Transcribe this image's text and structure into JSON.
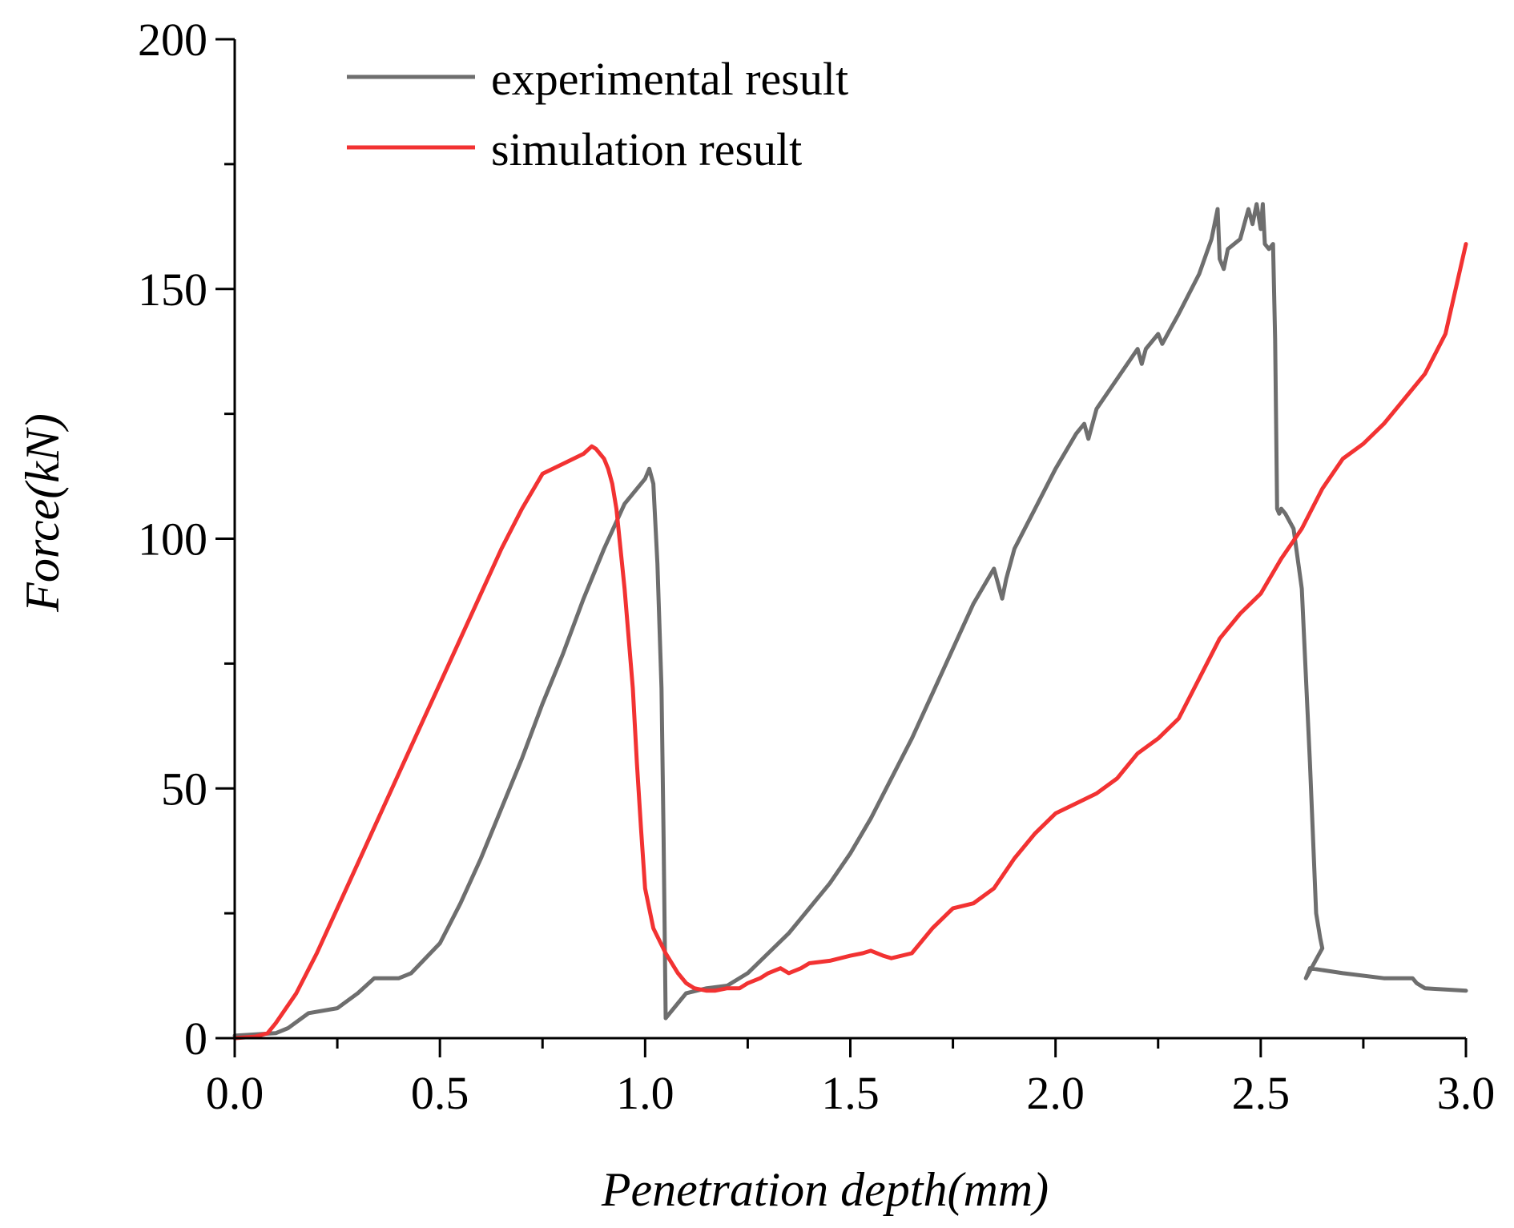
{
  "chart_data": {
    "type": "line",
    "title": "",
    "xlabel": "Penetration depth(mm)",
    "ylabel": "Force(kN)",
    "xlim": [
      0.0,
      3.0
    ],
    "ylim": [
      0,
      200
    ],
    "x_ticks": [
      "0.0",
      "0.5",
      "1.0",
      "1.5",
      "2.0",
      "2.5",
      "3.0"
    ],
    "y_ticks": [
      "0",
      "50",
      "100",
      "150",
      "200"
    ],
    "grid": false,
    "legend_position": "top-center",
    "series": [
      {
        "name": "experimental result",
        "color": "#6e6e6e",
        "x": [
          0.0,
          0.1,
          0.13,
          0.18,
          0.25,
          0.3,
          0.34,
          0.4,
          0.43,
          0.5,
          0.55,
          0.6,
          0.65,
          0.7,
          0.75,
          0.8,
          0.85,
          0.9,
          0.95,
          1.0,
          1.01,
          1.02,
          1.03,
          1.04,
          1.045,
          1.05,
          1.06,
          1.08,
          1.1,
          1.15,
          1.2,
          1.25,
          1.3,
          1.35,
          1.4,
          1.45,
          1.5,
          1.55,
          1.6,
          1.65,
          1.7,
          1.75,
          1.8,
          1.85,
          1.87,
          1.88,
          1.9,
          1.95,
          2.0,
          2.05,
          2.07,
          2.08,
          2.1,
          2.15,
          2.2,
          2.21,
          2.22,
          2.25,
          2.26,
          2.28,
          2.3,
          2.35,
          2.38,
          2.395,
          2.4,
          2.41,
          2.42,
          2.45,
          2.47,
          2.48,
          2.49,
          2.5,
          2.505,
          2.51,
          2.52,
          2.53,
          2.535,
          2.54,
          2.545,
          2.55,
          2.56,
          2.58,
          2.6,
          2.62,
          2.635,
          2.645,
          2.65,
          2.61,
          2.62,
          2.7,
          2.8,
          2.87,
          2.88,
          2.9,
          3.0
        ],
        "values": [
          0.5,
          1,
          2,
          5,
          6,
          9,
          12,
          12,
          13,
          19,
          27,
          36,
          46,
          56,
          67,
          77,
          88,
          98,
          107,
          112,
          114,
          111,
          95,
          70,
          40,
          4,
          5,
          7,
          9,
          10,
          10.5,
          13,
          17,
          21,
          26,
          31,
          37,
          44,
          52,
          60,
          69,
          78,
          87,
          94,
          88,
          92,
          98,
          106,
          114,
          121,
          123,
          120,
          126,
          132,
          138,
          135,
          138,
          141,
          139,
          142,
          145,
          153,
          160,
          166,
          156,
          154,
          158,
          160,
          166,
          163,
          167,
          162,
          167,
          159,
          158,
          159,
          140,
          106,
          105,
          106,
          105,
          102,
          90,
          55,
          25,
          20,
          18,
          12,
          14,
          13,
          12,
          12,
          11,
          10,
          9.5
        ]
      },
      {
        "name": "simulation result",
        "color": "#f23232",
        "x": [
          0.0,
          0.05,
          0.08,
          0.1,
          0.15,
          0.2,
          0.25,
          0.3,
          0.35,
          0.4,
          0.45,
          0.5,
          0.55,
          0.6,
          0.65,
          0.7,
          0.75,
          0.8,
          0.85,
          0.87,
          0.88,
          0.89,
          0.9,
          0.91,
          0.92,
          0.93,
          0.95,
          0.97,
          0.98,
          0.99,
          1.0,
          1.02,
          1.05,
          1.08,
          1.1,
          1.12,
          1.15,
          1.17,
          1.2,
          1.23,
          1.25,
          1.28,
          1.3,
          1.33,
          1.35,
          1.38,
          1.4,
          1.45,
          1.5,
          1.53,
          1.55,
          1.58,
          1.6,
          1.65,
          1.7,
          1.75,
          1.8,
          1.85,
          1.9,
          1.95,
          2.0,
          2.05,
          2.1,
          2.15,
          2.2,
          2.25,
          2.3,
          2.35,
          2.4,
          2.45,
          2.5,
          2.55,
          2.6,
          2.65,
          2.7,
          2.75,
          2.8,
          2.85,
          2.9,
          2.95,
          3.0
        ],
        "values": [
          0,
          0.3,
          1,
          3,
          9,
          17,
          26,
          35,
          44,
          53,
          62,
          71,
          80,
          89,
          98,
          106,
          113,
          115,
          117,
          118.5,
          118,
          117,
          116,
          114,
          111,
          106,
          90,
          70,
          55,
          42,
          30,
          22,
          17,
          13,
          11,
          10,
          9.5,
          9.5,
          10,
          10,
          11,
          12,
          13,
          14,
          13,
          14,
          15,
          15.5,
          16.5,
          17,
          17.5,
          16.5,
          16,
          17,
          22,
          26,
          27,
          30,
          36,
          41,
          45,
          47,
          49,
          52,
          57,
          60,
          64,
          72,
          80,
          85,
          89,
          96,
          102,
          110,
          116,
          119,
          123,
          128,
          133,
          141,
          159
        ]
      }
    ]
  }
}
